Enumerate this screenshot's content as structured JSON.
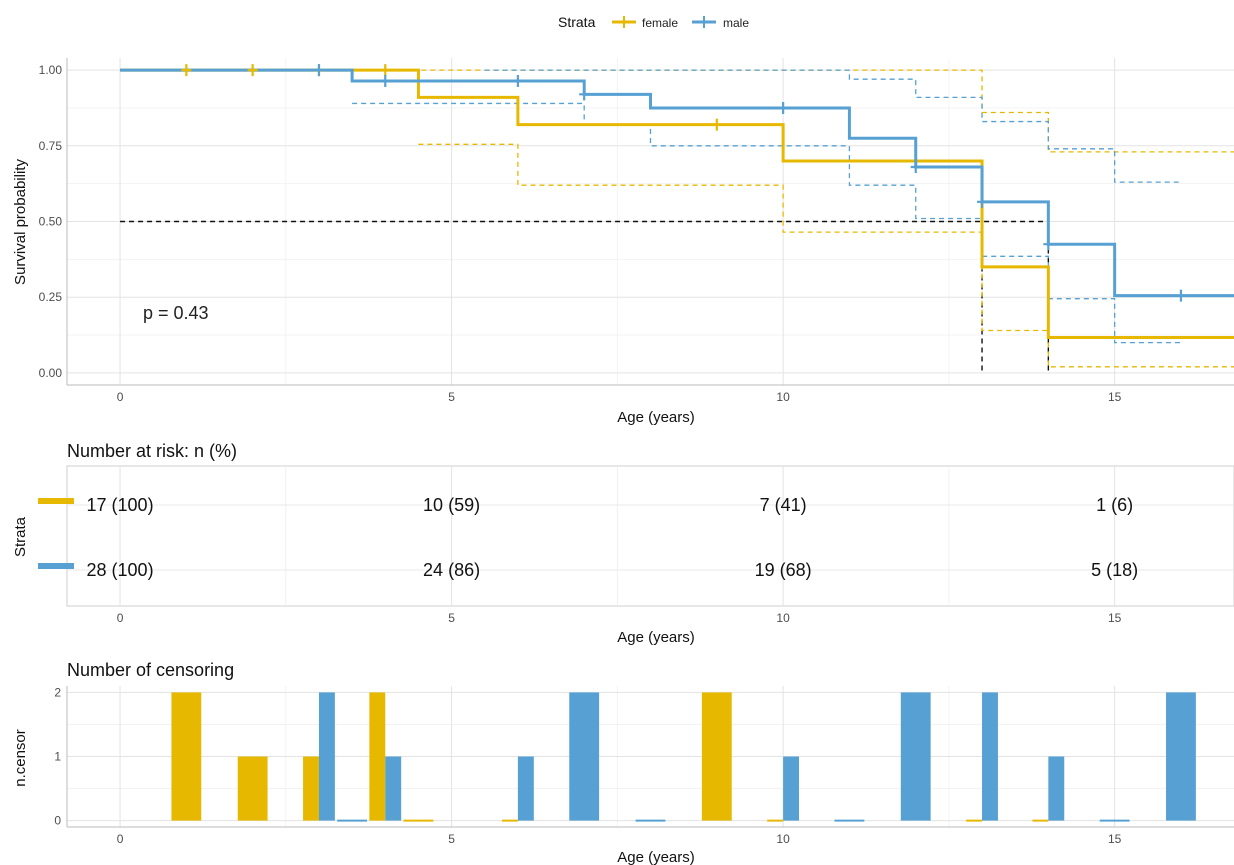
{
  "legend": {
    "title": "Strata",
    "items": [
      {
        "label": "female",
        "color": "#E7B800"
      },
      {
        "label": "male",
        "color": "#56A0D3"
      }
    ]
  },
  "pvalue_text": "p = 0.43",
  "risk_table": {
    "title": "Number at risk: n (%)",
    "ylabel": "Strata",
    "xlabel": "Age (years)",
    "times": [
      0,
      5,
      10,
      15
    ],
    "rows": [
      {
        "strata": "female",
        "color": "#E7B800",
        "values": [
          "17 (100)",
          "10 (59)",
          "7 (41)",
          "1 (6)"
        ]
      },
      {
        "strata": "male",
        "color": "#56A0D3",
        "values": [
          "28 (100)",
          "24 (86)",
          "19 (68)",
          "5 (18)"
        ]
      }
    ]
  },
  "censor_plot": {
    "title": "Number of censoring",
    "ylabel": "n.censor",
    "xlabel": "Age (years)"
  },
  "chart_data": [
    {
      "type": "line",
      "subtype": "kaplan-meier",
      "xlabel": "Age (years)",
      "ylabel": "Survival probability",
      "xlim": [
        -0.8,
        16.8
      ],
      "ylim": [
        -0.04,
        1.04
      ],
      "xticks": [
        0,
        5,
        10,
        15
      ],
      "yticks": [
        0,
        0.25,
        0.5,
        0.75,
        1.0
      ],
      "ytick_labels": [
        "0.00",
        "0.25",
        "0.50",
        "0.75",
        "1.00"
      ],
      "grid": true,
      "legend_position": "top",
      "median_line": {
        "y": 0.5,
        "x_end": 14,
        "drops": [
          13,
          14
        ]
      },
      "series": [
        {
          "name": "female",
          "color": "#E7B800",
          "steps": [
            [
              0,
              1.0
            ],
            [
              4.5,
              0.91
            ],
            [
              6,
              0.82
            ],
            [
              10,
              0.7
            ],
            [
              13,
              0.35
            ],
            [
              14,
              0.117
            ],
            [
              16.8,
              0.117
            ]
          ],
          "upper": [
            [
              4,
              1.0
            ],
            [
              13,
              0.86
            ],
            [
              14,
              0.73
            ],
            [
              16.8,
              0.73
            ]
          ],
          "lower": [
            [
              4.5,
              0.755
            ],
            [
              6,
              0.62
            ],
            [
              10,
              0.465
            ],
            [
              13,
              0.14
            ],
            [
              14,
              0.02
            ],
            [
              16.8,
              0.02
            ]
          ],
          "censor_marks": [
            [
              1,
              1.0
            ],
            [
              2,
              1.0
            ],
            [
              3,
              1.0
            ],
            [
              4,
              1.0
            ],
            [
              9,
              0.82
            ]
          ]
        },
        {
          "name": "male",
          "color": "#56A0D3",
          "steps": [
            [
              0,
              1.0
            ],
            [
              3.5,
              0.964
            ],
            [
              7,
              0.92
            ],
            [
              8,
              0.875
            ],
            [
              11,
              0.775
            ],
            [
              12,
              0.68
            ],
            [
              13,
              0.565
            ],
            [
              14,
              0.425
            ],
            [
              15,
              0.255
            ],
            [
              16.8,
              0.255
            ]
          ],
          "upper": [
            [
              5.5,
              1.0
            ],
            [
              11,
              0.97
            ],
            [
              12,
              0.91
            ],
            [
              13,
              0.83
            ],
            [
              14,
              0.74
            ],
            [
              15,
              0.63
            ],
            [
              16,
              0.63
            ]
          ],
          "lower": [
            [
              3.5,
              0.89
            ],
            [
              7,
              0.82
            ],
            [
              8,
              0.75
            ],
            [
              11,
              0.62
            ],
            [
              12,
              0.51
            ],
            [
              13,
              0.385
            ],
            [
              14,
              0.245
            ],
            [
              15,
              0.1
            ],
            [
              16,
              0.1
            ]
          ],
          "censor_marks": [
            [
              3,
              1.0
            ],
            [
              4,
              0.964
            ],
            [
              6,
              0.964
            ],
            [
              7,
              0.92
            ],
            [
              10,
              0.875
            ],
            [
              12,
              0.68
            ],
            [
              13,
              0.565
            ],
            [
              14,
              0.425
            ],
            [
              16,
              0.255
            ]
          ]
        }
      ]
    },
    {
      "type": "bar",
      "subtype": "censoring-counts",
      "xlabel": "Age (years)",
      "ylabel": "n.censor",
      "xlim": [
        -0.8,
        16.8
      ],
      "ylim": [
        -0.1,
        2.1
      ],
      "xticks": [
        0,
        5,
        10,
        15
      ],
      "yticks": [
        0,
        1,
        2
      ],
      "series": [
        {
          "name": "female",
          "color": "#E7B800",
          "x": [
            1,
            2,
            3,
            4,
            4.5,
            6,
            9,
            10,
            13,
            14
          ],
          "values": [
            2,
            1,
            1,
            2,
            0,
            0,
            2,
            0,
            0,
            0
          ]
        },
        {
          "name": "male",
          "color": "#56A0D3",
          "x": [
            3,
            3.5,
            4,
            6,
            7,
            8,
            10,
            11,
            12,
            13,
            14,
            15,
            16
          ],
          "values": [
            2,
            0,
            1,
            1,
            2,
            0,
            1,
            0,
            2,
            2,
            1,
            0,
            2
          ]
        }
      ]
    }
  ]
}
